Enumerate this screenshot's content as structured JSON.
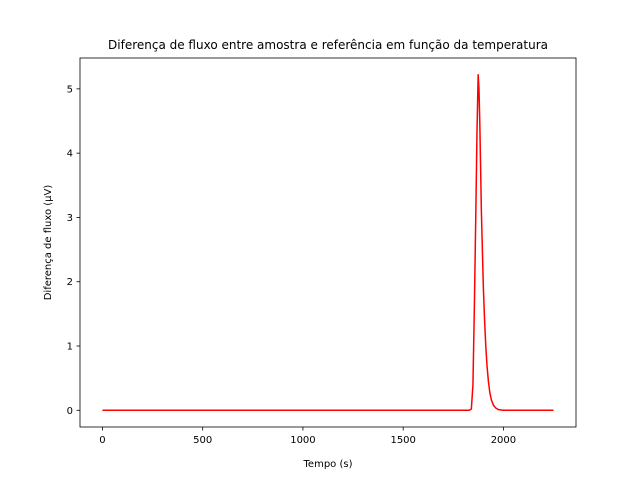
{
  "chart_data": {
    "type": "line",
    "title": "Diferença de fluxo entre amostra e referência em função da temperatura",
    "xlabel": "Tempo (s)",
    "ylabel": "Diferença de fluxo (µV)",
    "xlim": [
      -112,
      2362
    ],
    "ylim": [
      -0.26,
      5.48
    ],
    "xticks": [
      0,
      500,
      1000,
      1500,
      2000
    ],
    "yticks": [
      0,
      1,
      2,
      3,
      4,
      5
    ],
    "grid": false,
    "series": [
      {
        "color": "#ff0000",
        "x": [
          0,
          500,
          1000,
          1500,
          1830,
          1840,
          1848,
          1855,
          1862,
          1868,
          1874,
          1878,
          1882,
          1886,
          1890,
          1895,
          1900,
          1906,
          1912,
          1918,
          1925,
          1932,
          1940,
          1950,
          1960,
          1975,
          2000,
          2100,
          2250
        ],
        "y": [
          0,
          0,
          0,
          0,
          0,
          0.02,
          0.4,
          1.6,
          3.0,
          4.3,
          5.22,
          5.0,
          4.5,
          3.8,
          3.1,
          2.5,
          1.9,
          1.4,
          1.0,
          0.7,
          0.45,
          0.28,
          0.16,
          0.08,
          0.04,
          0.01,
          0,
          0,
          0
        ]
      }
    ]
  }
}
